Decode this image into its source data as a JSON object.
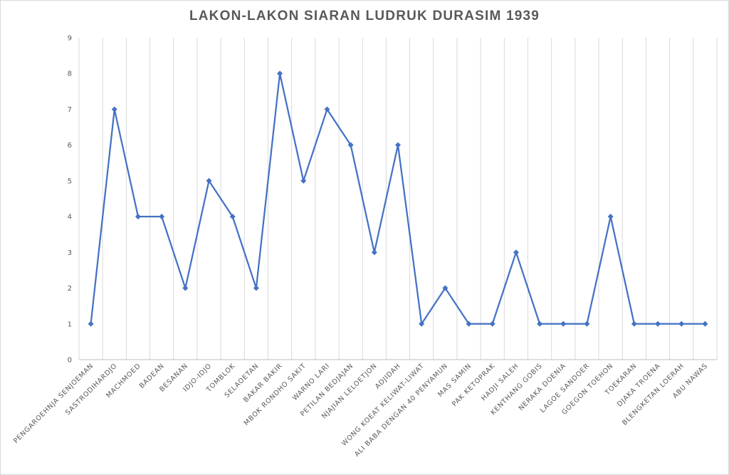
{
  "chart_data": {
    "type": "line",
    "title": "LAKON-LAKON SIARAN LUDRUK DURASIM 1939",
    "xlabel": "",
    "ylabel": "",
    "ylim": [
      0,
      9
    ],
    "yticks": [
      0,
      1,
      2,
      3,
      4,
      5,
      6,
      7,
      8,
      9
    ],
    "grid": "vertical",
    "legend": "none",
    "categories": [
      "PENGAROEHNJA SENJOEMAN",
      "SASTRODIHARDJO",
      "MACHMOED",
      "BADEAN",
      "BESANAN",
      "IDJO-IDJO",
      "TOMBLOK",
      "SELAOETAN",
      "BAKAR BAKIR",
      "MBOK RONDHO SAKIT",
      "WARNO LARI",
      "PETILAN BEDJAJAN",
      "NJAJIAN LELOETJON",
      "ADJIDAH",
      "WONG KOEAT KELIWAT-LIWAT",
      "ALI BABA DENGAN 40 PENYAMUN",
      "MAS SAMIN",
      "PAK KETOPRAK",
      "HADJI SALEH",
      "KENTHANG GOBIS",
      "NERAKA DOENIA",
      "LAGOE SANDOER",
      "GOEGON TOEHON",
      "TOEKARAN",
      "DJAKA TROENA",
      "BLENGKETAN LOERAH",
      "ABU NAWAS"
    ],
    "series": [
      {
        "values": [
          1,
          7,
          4,
          4,
          2,
          5,
          4,
          2,
          8,
          5,
          7,
          6,
          3,
          6,
          1,
          2,
          1,
          1,
          3,
          1,
          1,
          1,
          4,
          1,
          1,
          1,
          1
        ],
        "color": "#4472c4",
        "marker": "diamond"
      }
    ],
    "colors": {
      "line": "#4472c4",
      "grid": "#d9d9d9",
      "axis": "#bfbfbf",
      "text": "#595959"
    }
  }
}
